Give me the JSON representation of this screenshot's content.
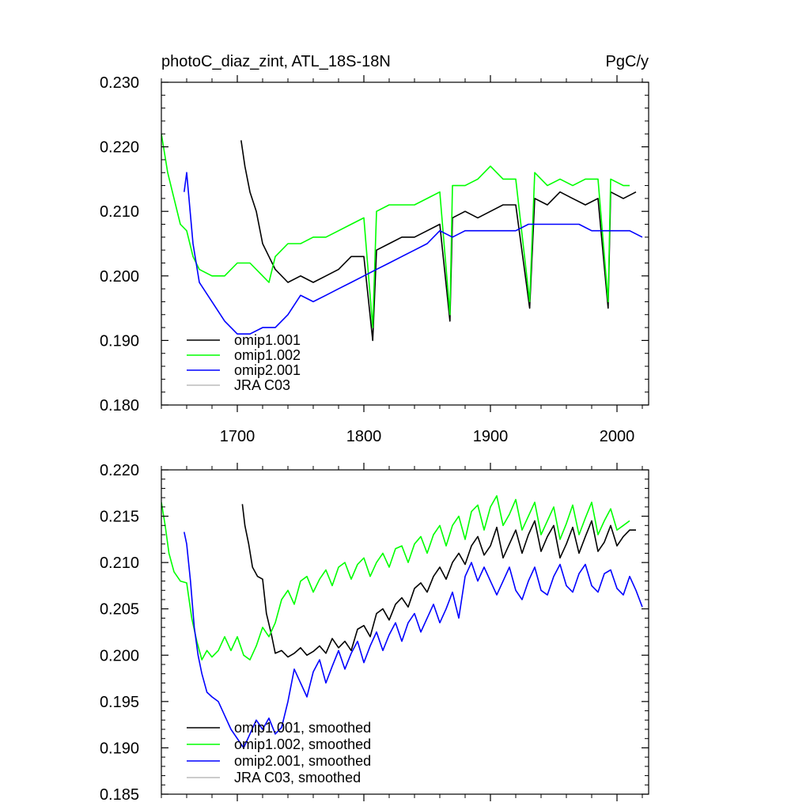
{
  "chart_data": [
    {
      "type": "line",
      "title": "photoC_diaz_zint, ATL_18S-18N",
      "units_label": "PgC/y",
      "xlabel": "",
      "ylabel": "",
      "xlim": [
        1640,
        2025
      ],
      "ylim": [
        0.18,
        0.23
      ],
      "x_ticks": [
        1700,
        1800,
        1900,
        2000
      ],
      "x_tick_labels": [
        "1700",
        "1800",
        "1900",
        "2000"
      ],
      "y_ticks": [
        0.18,
        0.19,
        0.2,
        0.21,
        0.22,
        0.23
      ],
      "y_tick_labels": [
        "0.180",
        "0.190",
        "0.200",
        "0.210",
        "0.220",
        "0.230"
      ],
      "grid": false,
      "legend_position": "bottom-left",
      "series": [
        {
          "name": "omip1.001",
          "color": "#000000",
          "x": [
            1703,
            1706,
            1710,
            1715,
            1720,
            1725,
            1730,
            1740,
            1750,
            1760,
            1770,
            1780,
            1790,
            1800,
            1807,
            1810,
            1820,
            1830,
            1840,
            1850,
            1860,
            1868,
            1870,
            1880,
            1890,
            1900,
            1910,
            1920,
            1931,
            1935,
            1945,
            1955,
            1965,
            1975,
            1985,
            1993,
            1995,
            2005,
            2015
          ],
          "values": [
            0.221,
            0.217,
            0.213,
            0.21,
            0.205,
            0.203,
            0.201,
            0.199,
            0.2,
            0.199,
            0.2,
            0.201,
            0.203,
            0.203,
            0.19,
            0.204,
            0.205,
            0.206,
            0.206,
            0.207,
            0.208,
            0.193,
            0.209,
            0.21,
            0.209,
            0.21,
            0.211,
            0.211,
            0.195,
            0.212,
            0.211,
            0.213,
            0.212,
            0.211,
            0.212,
            0.195,
            0.213,
            0.212,
            0.213
          ]
        },
        {
          "name": "omip1.002",
          "color": "#00ff00",
          "x": [
            1640,
            1645,
            1650,
            1655,
            1660,
            1665,
            1670,
            1680,
            1690,
            1700,
            1710,
            1720,
            1725,
            1730,
            1740,
            1750,
            1760,
            1770,
            1780,
            1790,
            1800,
            1807,
            1810,
            1820,
            1830,
            1840,
            1850,
            1860,
            1868,
            1870,
            1880,
            1890,
            1900,
            1910,
            1920,
            1931,
            1935,
            1945,
            1955,
            1965,
            1975,
            1985,
            1993,
            1995,
            2005,
            2010
          ],
          "values": [
            0.222,
            0.216,
            0.212,
            0.208,
            0.207,
            0.203,
            0.201,
            0.2,
            0.2,
            0.202,
            0.202,
            0.2,
            0.199,
            0.203,
            0.205,
            0.205,
            0.206,
            0.206,
            0.207,
            0.208,
            0.209,
            0.192,
            0.21,
            0.211,
            0.211,
            0.211,
            0.212,
            0.213,
            0.194,
            0.214,
            0.214,
            0.215,
            0.217,
            0.215,
            0.215,
            0.196,
            0.216,
            0.214,
            0.215,
            0.214,
            0.215,
            0.215,
            0.196,
            0.215,
            0.214,
            0.214
          ]
        },
        {
          "name": "omip2.001",
          "color": "#0000ff",
          "x": [
            1658,
            1660,
            1665,
            1670,
            1680,
            1690,
            1700,
            1710,
            1720,
            1730,
            1740,
            1750,
            1760,
            1770,
            1780,
            1790,
            1800,
            1810,
            1820,
            1830,
            1840,
            1850,
            1860,
            1870,
            1880,
            1890,
            1900,
            1910,
            1920,
            1930,
            1940,
            1950,
            1960,
            1970,
            1980,
            1990,
            2000,
            2010,
            2020
          ],
          "values": [
            0.213,
            0.216,
            0.205,
            0.199,
            0.196,
            0.193,
            0.191,
            0.191,
            0.192,
            0.192,
            0.194,
            0.197,
            0.196,
            0.197,
            0.198,
            0.199,
            0.2,
            0.201,
            0.202,
            0.203,
            0.204,
            0.205,
            0.207,
            0.206,
            0.207,
            0.207,
            0.207,
            0.207,
            0.207,
            0.208,
            0.208,
            0.208,
            0.208,
            0.208,
            0.207,
            0.207,
            0.207,
            0.207,
            0.206
          ]
        },
        {
          "name": "JRA C03",
          "color": "#bbbbbb",
          "x": [],
          "values": []
        }
      ]
    },
    {
      "type": "line",
      "title": "",
      "xlabel": "",
      "ylabel": "",
      "xlim": [
        1640,
        2025
      ],
      "ylim": [
        0.185,
        0.22
      ],
      "x_ticks": [
        1700,
        1800,
        1900,
        2000
      ],
      "x_tick_labels": [],
      "y_ticks": [
        0.185,
        0.19,
        0.195,
        0.2,
        0.205,
        0.21,
        0.215,
        0.22
      ],
      "y_tick_labels": [
        "0.185",
        "0.190",
        "0.195",
        "0.200",
        "0.205",
        "0.210",
        "0.215",
        "0.220"
      ],
      "grid": false,
      "legend_position": "bottom-left",
      "series": [
        {
          "name": "omip1.001, smoothed",
          "color": "#000000",
          "x": [
            1704,
            1706,
            1709,
            1712,
            1716,
            1720,
            1723,
            1727,
            1730,
            1735,
            1740,
            1745,
            1750,
            1755,
            1760,
            1765,
            1770,
            1775,
            1780,
            1785,
            1790,
            1795,
            1800,
            1805,
            1810,
            1815,
            1820,
            1825,
            1830,
            1835,
            1840,
            1845,
            1850,
            1855,
            1860,
            1865,
            1870,
            1875,
            1880,
            1885,
            1890,
            1895,
            1900,
            1905,
            1910,
            1915,
            1920,
            1925,
            1930,
            1935,
            1940,
            1945,
            1950,
            1955,
            1960,
            1965,
            1970,
            1975,
            1980,
            1985,
            1990,
            1995,
            2000,
            2005,
            2010,
            2015
          ],
          "values": [
            0.2163,
            0.214,
            0.212,
            0.2095,
            0.2085,
            0.2082,
            0.2045,
            0.2022,
            0.2002,
            0.2005,
            0.1998,
            0.2002,
            0.2008,
            0.2,
            0.2004,
            0.201,
            0.2002,
            0.2018,
            0.2008,
            0.2015,
            0.2005,
            0.2028,
            0.2032,
            0.202,
            0.2045,
            0.205,
            0.2038,
            0.2055,
            0.2062,
            0.2052,
            0.2072,
            0.2078,
            0.2068,
            0.2085,
            0.2095,
            0.2082,
            0.21,
            0.211,
            0.2098,
            0.2118,
            0.2128,
            0.2108,
            0.2118,
            0.2138,
            0.2105,
            0.212,
            0.2135,
            0.211,
            0.213,
            0.2145,
            0.2112,
            0.2128,
            0.214,
            0.2105,
            0.212,
            0.2138,
            0.211,
            0.2128,
            0.2145,
            0.2112,
            0.2122,
            0.214,
            0.2118,
            0.2128,
            0.2135,
            0.2135
          ]
        },
        {
          "name": "omip1.002, smoothed",
          "color": "#00ff00",
          "x": [
            1640,
            1643,
            1646,
            1650,
            1655,
            1660,
            1664,
            1668,
            1672,
            1676,
            1680,
            1685,
            1690,
            1695,
            1700,
            1705,
            1710,
            1715,
            1720,
            1725,
            1730,
            1735,
            1740,
            1745,
            1750,
            1755,
            1760,
            1765,
            1770,
            1775,
            1780,
            1785,
            1790,
            1795,
            1800,
            1805,
            1810,
            1815,
            1820,
            1825,
            1830,
            1835,
            1840,
            1845,
            1850,
            1855,
            1860,
            1865,
            1870,
            1875,
            1880,
            1885,
            1890,
            1895,
            1900,
            1905,
            1910,
            1915,
            1920,
            1925,
            1930,
            1935,
            1940,
            1945,
            1950,
            1955,
            1960,
            1965,
            1970,
            1975,
            1980,
            1985,
            1990,
            1995,
            2000,
            2005,
            2010
          ],
          "values": [
            0.2165,
            0.214,
            0.211,
            0.209,
            0.208,
            0.2078,
            0.204,
            0.2015,
            0.1995,
            0.2005,
            0.1998,
            0.2005,
            0.202,
            0.2005,
            0.202,
            0.2,
            0.1995,
            0.201,
            0.203,
            0.202,
            0.2035,
            0.206,
            0.207,
            0.2055,
            0.208,
            0.2085,
            0.2068,
            0.2082,
            0.2092,
            0.2075,
            0.2095,
            0.21,
            0.2082,
            0.2098,
            0.2105,
            0.2085,
            0.21,
            0.211,
            0.2095,
            0.2115,
            0.2118,
            0.21,
            0.212,
            0.2128,
            0.211,
            0.213,
            0.214,
            0.2118,
            0.214,
            0.215,
            0.2125,
            0.2155,
            0.2162,
            0.2135,
            0.216,
            0.2172,
            0.214,
            0.2152,
            0.2168,
            0.2135,
            0.215,
            0.2165,
            0.213,
            0.2145,
            0.216,
            0.2125,
            0.2142,
            0.2162,
            0.213,
            0.2148,
            0.2165,
            0.213,
            0.2145,
            0.2158,
            0.2135,
            0.214,
            0.2145
          ]
        },
        {
          "name": "omip2.001, smoothed",
          "color": "#0000ff",
          "x": [
            1658,
            1660,
            1663,
            1666,
            1669,
            1672,
            1676,
            1680,
            1685,
            1690,
            1695,
            1700,
            1705,
            1710,
            1715,
            1720,
            1725,
            1730,
            1735,
            1740,
            1745,
            1750,
            1755,
            1760,
            1765,
            1770,
            1775,
            1780,
            1785,
            1790,
            1795,
            1800,
            1805,
            1810,
            1815,
            1820,
            1825,
            1830,
            1835,
            1840,
            1845,
            1850,
            1855,
            1860,
            1865,
            1870,
            1875,
            1880,
            1885,
            1890,
            1895,
            1900,
            1905,
            1910,
            1915,
            1920,
            1925,
            1930,
            1935,
            1940,
            1945,
            1950,
            1955,
            1960,
            1965,
            1970,
            1975,
            1980,
            1985,
            1990,
            1995,
            2000,
            2005,
            2010,
            2015,
            2020
          ],
          "values": [
            0.2133,
            0.212,
            0.208,
            0.203,
            0.2,
            0.198,
            0.196,
            0.1955,
            0.195,
            0.1935,
            0.192,
            0.191,
            0.19,
            0.1915,
            0.193,
            0.192,
            0.1932,
            0.1915,
            0.1922,
            0.195,
            0.1985,
            0.197,
            0.1955,
            0.1982,
            0.1995,
            0.197,
            0.1988,
            0.2005,
            0.1985,
            0.2002,
            0.2015,
            0.1992,
            0.201,
            0.2025,
            0.2005,
            0.2022,
            0.2035,
            0.2015,
            0.2035,
            0.2045,
            0.2025,
            0.204,
            0.2055,
            0.2035,
            0.205,
            0.2068,
            0.204,
            0.2085,
            0.21,
            0.208,
            0.2095,
            0.208,
            0.2065,
            0.208,
            0.2095,
            0.207,
            0.206,
            0.208,
            0.2095,
            0.207,
            0.2065,
            0.2085,
            0.2098,
            0.2075,
            0.2068,
            0.2088,
            0.2098,
            0.2075,
            0.2068,
            0.2088,
            0.2092,
            0.2072,
            0.2065,
            0.2085,
            0.207,
            0.2052
          ]
        },
        {
          "name": "JRA C03, smoothed",
          "color": "#bbbbbb",
          "x": [],
          "values": []
        }
      ]
    }
  ]
}
